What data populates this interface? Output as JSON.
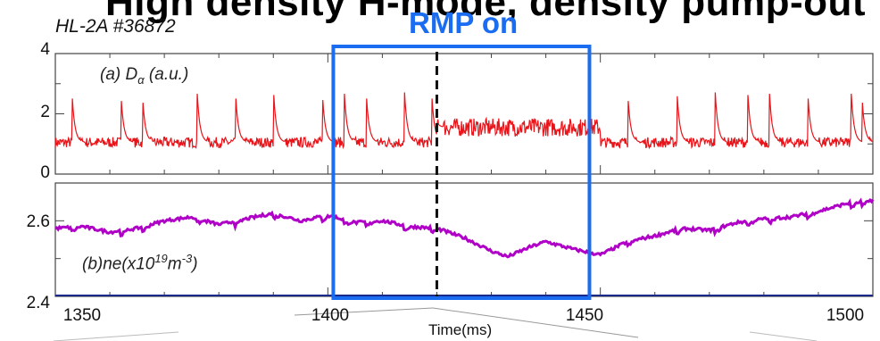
{
  "header": {
    "cut_title": "High density H-mode, density pump-out",
    "shot": "HL-2A #36872",
    "rmp_label": "RMP on"
  },
  "colors": {
    "dalpha": "#e8141a",
    "density": "#b000c8",
    "rmp_box": "#1a6cf0",
    "marker": "#111111"
  },
  "chart_data": [
    {
      "type": "line",
      "panel": "a",
      "label_main": "(a) D",
      "label_sub": "α",
      "label_tail": " (a.u.)",
      "xlabel": "Time(ms)",
      "xlim": [
        1350,
        1500
      ],
      "ylim": [
        0,
        4
      ],
      "yticks": [
        "0",
        "2",
        "4"
      ],
      "grid": false,
      "series": [
        {
          "baseline_segments": [
            {
              "x_range": [
                1350,
                1420
              ],
              "level": 1.05
            },
            {
              "x_range": [
                1420,
                1450
              ],
              "level": 1.55
            },
            {
              "x_range": [
                1450,
                1500
              ],
              "level": 1.05
            }
          ],
          "elm_times": [
            1353,
            1362,
            1366,
            1376,
            1383,
            1390,
            1399,
            1403,
            1407,
            1414,
            1419,
            1455,
            1464,
            1471,
            1477,
            1481,
            1488,
            1496,
            1498
          ],
          "elm_peaks": [
            2.9,
            2.8,
            2.6,
            2.8,
            2.9,
            2.9,
            2.7,
            2.8,
            2.9,
            3.0,
            2.9,
            2.8,
            3.0,
            3.0,
            2.9,
            2.8,
            2.9,
            2.8,
            2.6
          ]
        }
      ]
    },
    {
      "type": "line",
      "panel": "b",
      "label_main": "(b)ne(x10",
      "label_exp1": "19",
      "label_mid": "m",
      "label_exp2": "-3",
      "label_tail": ")",
      "xlabel": "Time(ms)",
      "xlim": [
        1350,
        1500
      ],
      "ylim": [
        2.4,
        2.7
      ],
      "yticks": [
        "2.4",
        "2.6"
      ],
      "grid": false,
      "series": [
        {
          "x": [
            1350,
            1355,
            1360,
            1365,
            1370,
            1375,
            1380,
            1385,
            1390,
            1395,
            1400,
            1405,
            1410,
            1415,
            1420,
            1425,
            1430,
            1433,
            1437,
            1440,
            1445,
            1450,
            1455,
            1460,
            1465,
            1470,
            1475,
            1480,
            1485,
            1490,
            1495,
            1500
          ],
          "y": [
            2.58,
            2.585,
            2.57,
            2.58,
            2.6,
            2.61,
            2.59,
            2.605,
            2.62,
            2.6,
            2.615,
            2.595,
            2.6,
            2.585,
            2.58,
            2.555,
            2.52,
            2.505,
            2.53,
            2.545,
            2.525,
            2.51,
            2.545,
            2.56,
            2.58,
            2.575,
            2.595,
            2.605,
            2.61,
            2.625,
            2.645,
            2.655
          ]
        }
      ]
    }
  ],
  "x_axis": {
    "ticks": [
      "1350",
      "1400",
      "1450",
      "1500"
    ],
    "tick_values": [
      1350,
      1400,
      1450,
      1500
    ],
    "label": "Time(ms)"
  },
  "rmp": {
    "window": [
      1401,
      1448
    ],
    "onset": 1420
  }
}
